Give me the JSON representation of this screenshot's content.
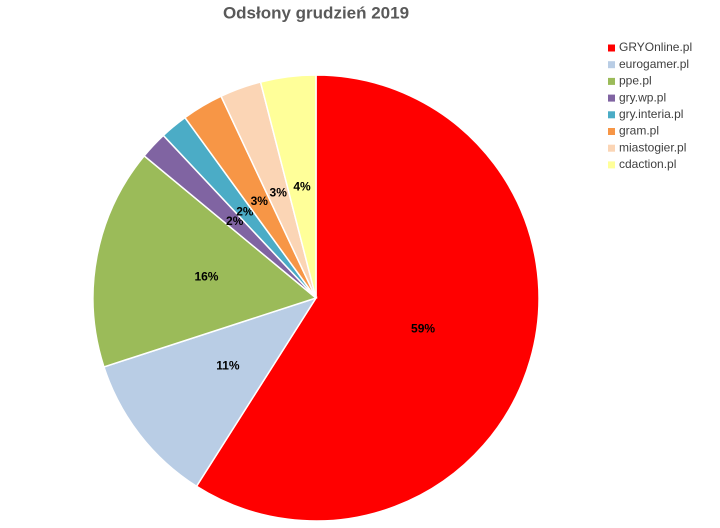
{
  "chart_data": {
    "type": "pie",
    "title": "Odsłony grudzień 2019",
    "categories": [
      "GRYOnline.pl",
      "eurogamer.pl",
      "ppe.pl",
      "gry.wp.pl",
      "gry.interia.pl",
      "gram.pl",
      "miastogier.pl",
      "cdaction.pl"
    ],
    "values": [
      59,
      11,
      16,
      2,
      2,
      3,
      3,
      4
    ],
    "value_labels": [
      "59%",
      "11%",
      "16%",
      "2%",
      "2%",
      "3%",
      "3%",
      "4%"
    ],
    "colors": [
      "#ff0000",
      "#b9cde5",
      "#9bbb59",
      "#8064a2",
      "#4bacc6",
      "#f79646",
      "#fbd5b5",
      "#ffff99"
    ],
    "legend": "right"
  }
}
